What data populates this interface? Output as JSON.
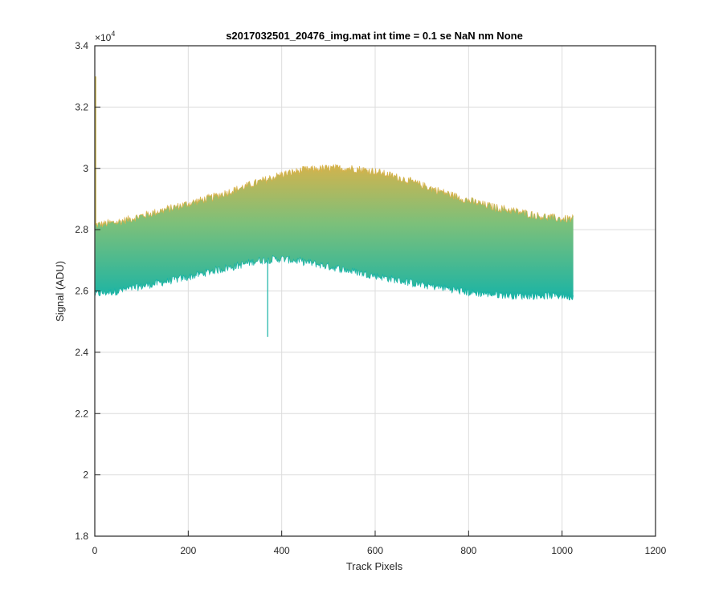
{
  "chart_data": {
    "type": "area",
    "title": "s2017032501_20476_img.mat int time = 0.1 se  NaN nm None",
    "xlabel": "Track Pixels",
    "ylabel": "Signal (ADU)",
    "exponent_label": "×10",
    "exponent_power": "4",
    "xlim": [
      0,
      1200
    ],
    "ylim": [
      18000,
      34000
    ],
    "x_ticks": [
      0,
      200,
      400,
      600,
      800,
      1000,
      1200
    ],
    "x_tick_labels": [
      "0",
      "200",
      "400",
      "600",
      "800",
      "1000",
      "1200"
    ],
    "y_ticks": [
      18000,
      20000,
      22000,
      24000,
      26000,
      28000,
      30000,
      32000,
      34000
    ],
    "y_tick_labels": [
      "1.8",
      "2",
      "2.2",
      "2.4",
      "2.6",
      "2.8",
      "3",
      "3.2",
      "3.4"
    ],
    "grid": true,
    "x_range": [
      1,
      1024
    ],
    "upper_envelope": {
      "x": [
        1,
        50,
        100,
        150,
        200,
        250,
        300,
        350,
        400,
        450,
        500,
        550,
        600,
        650,
        700,
        750,
        800,
        850,
        900,
        950,
        1000,
        1024
      ],
      "y": [
        28150,
        28250,
        28450,
        28650,
        28850,
        29050,
        29300,
        29550,
        29800,
        29950,
        30000,
        30000,
        29900,
        29700,
        29450,
        29200,
        28950,
        28750,
        28600,
        28450,
        28350,
        28350
      ]
    },
    "lower_envelope": {
      "x": [
        1,
        50,
        100,
        150,
        200,
        250,
        300,
        350,
        400,
        450,
        500,
        550,
        600,
        650,
        700,
        750,
        800,
        850,
        900,
        950,
        1000,
        1024
      ],
      "y": [
        25900,
        26000,
        26150,
        26300,
        26450,
        26650,
        26800,
        27000,
        27050,
        26950,
        26800,
        26650,
        26500,
        26350,
        26200,
        26100,
        25950,
        25900,
        25850,
        25850,
        25850,
        25800
      ]
    },
    "spike": {
      "x": 370,
      "min_y": 24500
    },
    "left_edge_spike": {
      "x": 1,
      "max_y": 33000
    },
    "colors": {
      "top": "#d8b24a",
      "mid": "#7cc07a",
      "bottom": "#17b3a6"
    }
  }
}
